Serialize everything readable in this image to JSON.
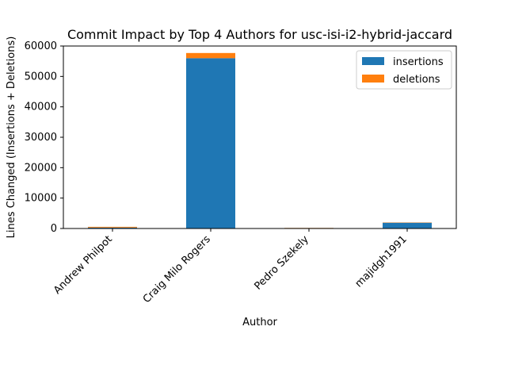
{
  "chart_data": {
    "type": "bar",
    "stacked": true,
    "title": "Commit Impact by Top 4 Authors for usc-isi-i2-hybrid-jaccard",
    "xlabel": "Author",
    "ylabel": "Lines Changed (Insertions + Deletions)",
    "categories": [
      "Andrew Philpot",
      "Craig Milo Rogers",
      "Pedro Szekely",
      "majidgh1991"
    ],
    "series": [
      {
        "name": "insertions",
        "color": "#1f77b4",
        "values": [
          300,
          56000,
          150,
          1900
        ]
      },
      {
        "name": "deletions",
        "color": "#ff7f0e",
        "values": [
          250,
          1700,
          50,
          100
        ]
      }
    ],
    "ylim": [
      0,
      60000
    ],
    "yticks": [
      0,
      10000,
      20000,
      30000,
      40000,
      50000,
      60000
    ],
    "ytick_labels": [
      "0",
      "10000",
      "20000",
      "30000",
      "40000",
      "50000",
      "60000"
    ],
    "grid": false,
    "legend_position": "top-right"
  }
}
